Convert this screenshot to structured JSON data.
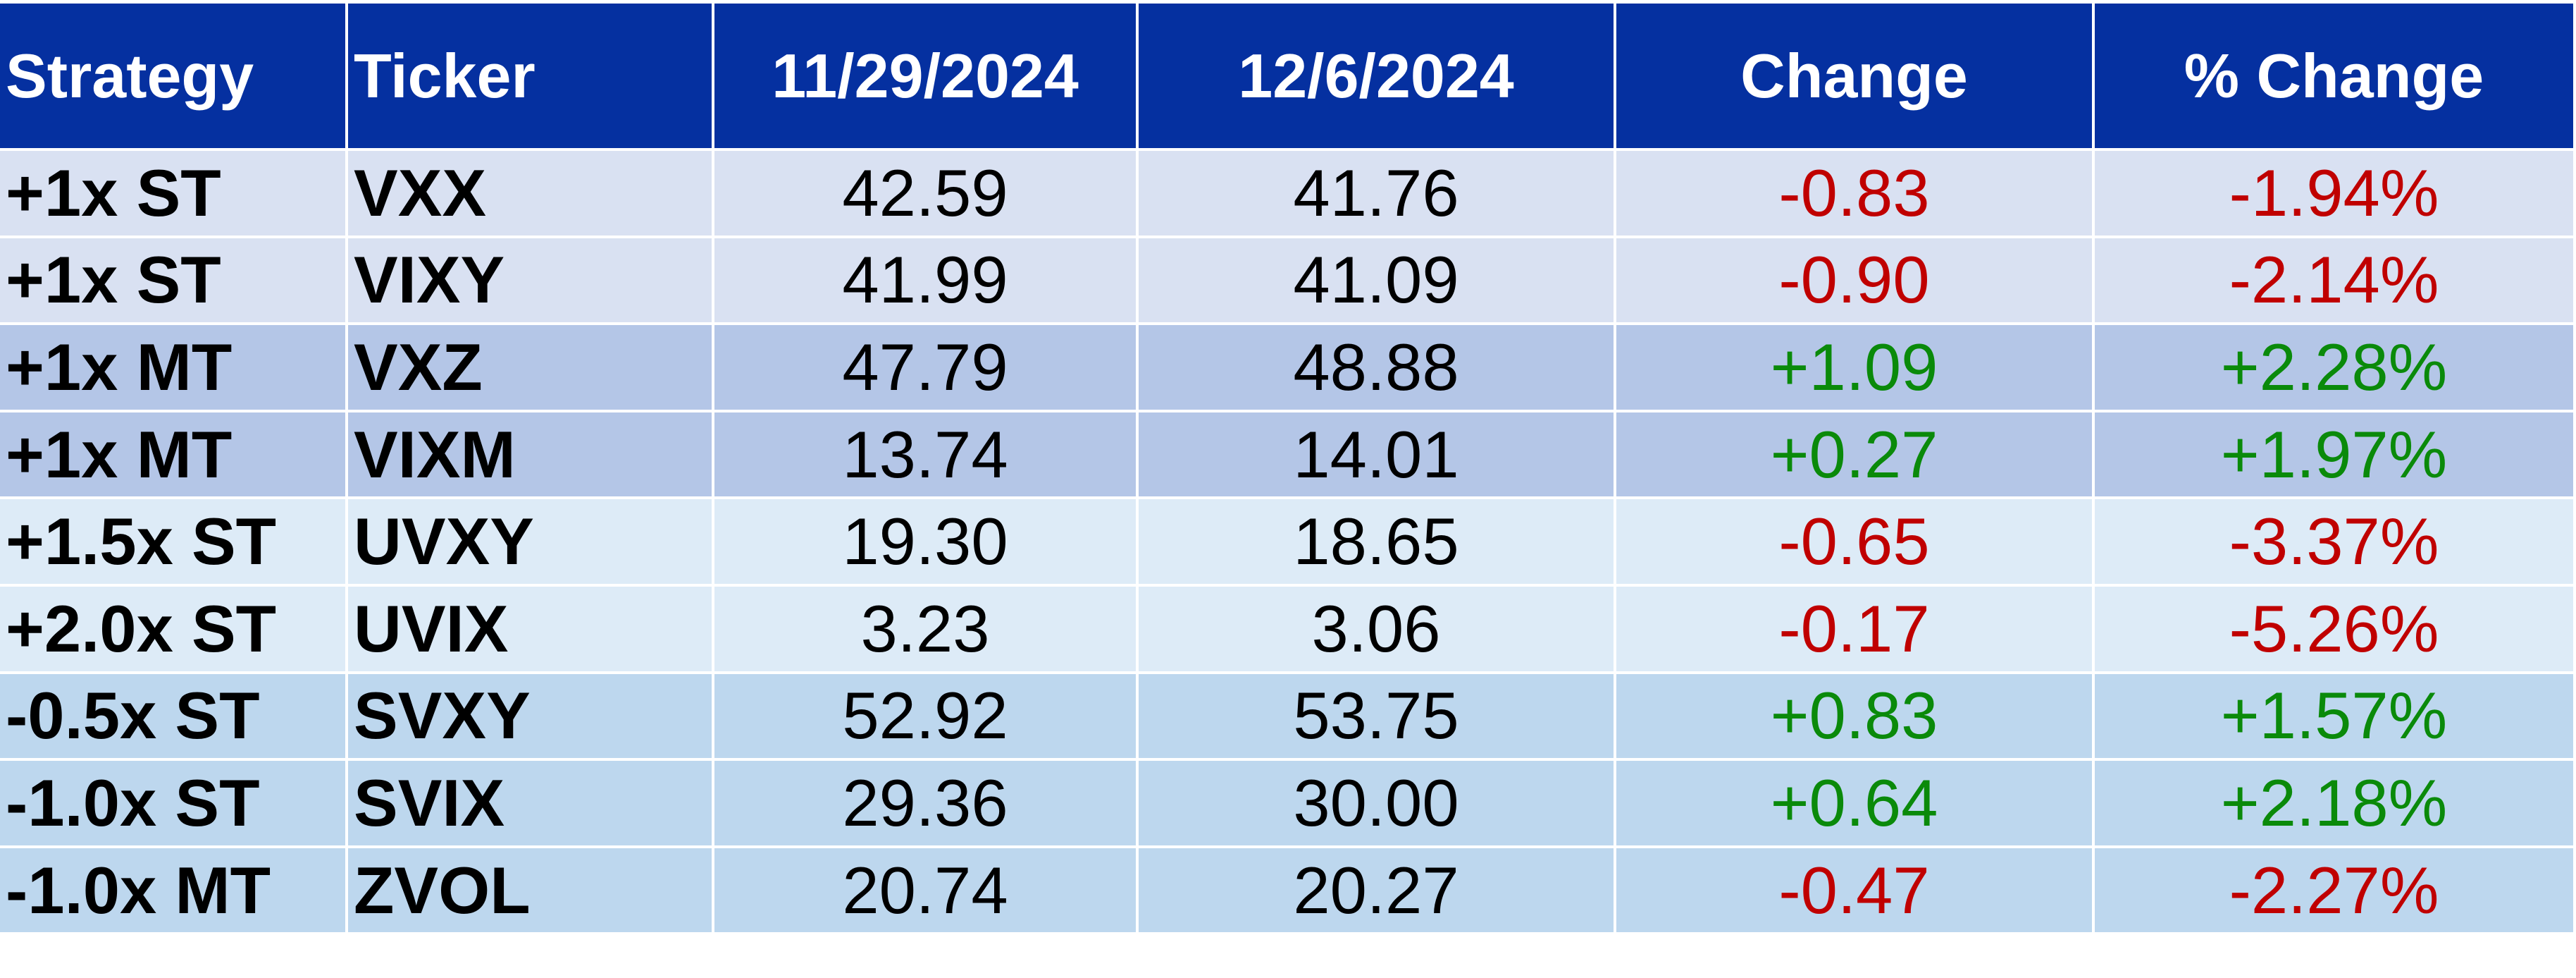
{
  "table": {
    "header": [
      "Strategy",
      "Ticker",
      "11/29/2024",
      "12/6/2024",
      "Change",
      "% Change"
    ],
    "rows": [
      [
        "+1x ST",
        "VXX",
        "42.59",
        "41.76",
        "-0.83",
        "-1.94%"
      ],
      [
        "+1x ST",
        "VIXY",
        "41.99",
        "41.09",
        "-0.90",
        "-2.14%"
      ],
      [
        "+1x MT",
        "VXZ",
        "47.79",
        "48.88",
        "+1.09",
        "+2.28%"
      ],
      [
        "+1x MT",
        "VIXM",
        "13.74",
        "14.01",
        "+0.27",
        "+1.97%"
      ],
      [
        "+1.5x ST",
        "UVXY",
        "19.30",
        "18.65",
        "-0.65",
        "-3.37%"
      ],
      [
        "+2.0x ST",
        "UVIX",
        "3.23",
        "3.06",
        "-0.17",
        "-5.26%"
      ],
      [
        "-0.5x ST",
        "SVXY",
        "52.92",
        "53.75",
        "+0.83",
        "+1.57%"
      ],
      [
        "-1.0x ST",
        "SVIX",
        "29.36",
        "30.00",
        "+0.64",
        "+2.18%"
      ],
      [
        "-1.0x MT",
        "ZVOL",
        "20.74",
        "20.27",
        "-0.47",
        "-2.27%"
      ]
    ]
  }
}
